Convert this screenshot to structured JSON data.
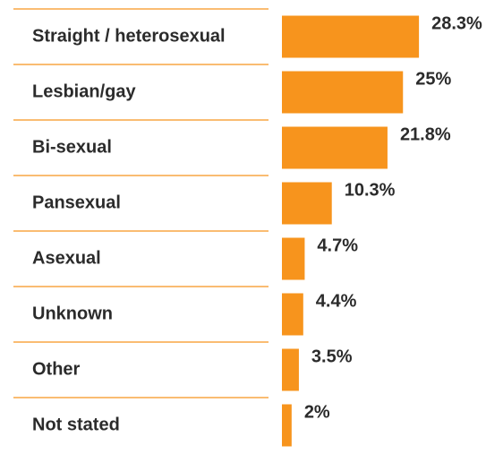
{
  "chart_data": {
    "type": "bar",
    "orientation": "horizontal",
    "categories": [
      "Straight / heterosexual",
      "Lesbian/gay",
      "Bi-sexual",
      "Pansexual",
      "Asexual",
      "Unknown",
      "Other",
      "Not stated"
    ],
    "values": [
      28.3,
      25,
      21.8,
      10.3,
      4.7,
      4.4,
      3.5,
      2
    ],
    "value_labels": [
      "28.3%",
      "25%",
      "21.8%",
      "10.3%",
      "4.7%",
      "4.4%",
      "3.5%",
      "2%"
    ],
    "color": "#f7941d"
  }
}
